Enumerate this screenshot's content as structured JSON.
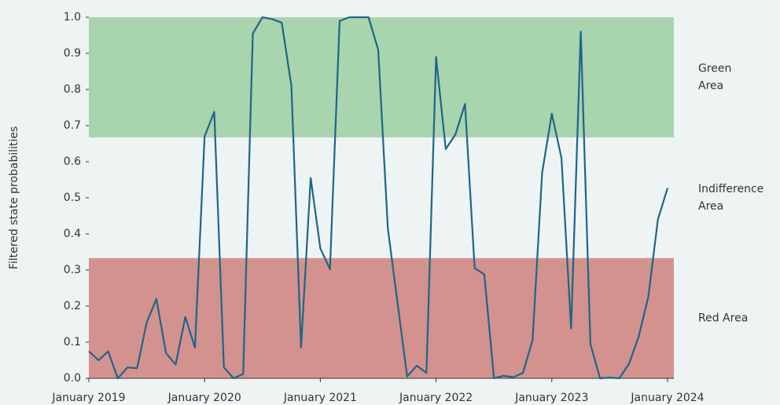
{
  "chart_data": {
    "type": "line",
    "y_label": "Filtered state probabilities",
    "x": [
      "2019-01",
      "2019-02",
      "2019-03",
      "2019-04",
      "2019-05",
      "2019-06",
      "2019-07",
      "2019-08",
      "2019-09",
      "2019-10",
      "2019-11",
      "2019-12",
      "2020-01",
      "2020-02",
      "2020-03",
      "2020-04",
      "2020-05",
      "2020-06",
      "2020-07",
      "2020-08",
      "2020-09",
      "2020-10",
      "2020-11",
      "2020-12",
      "2021-01",
      "2021-02",
      "2021-03",
      "2021-04",
      "2021-05",
      "2021-06",
      "2021-07",
      "2021-08",
      "2021-09",
      "2021-10",
      "2021-11",
      "2021-12",
      "2022-01",
      "2022-02",
      "2022-03",
      "2022-04",
      "2022-05",
      "2022-06",
      "2022-07",
      "2022-08",
      "2022-09",
      "2022-10",
      "2022-11",
      "2022-12",
      "2023-01",
      "2023-02",
      "2023-03",
      "2023-04",
      "2023-05",
      "2023-06",
      "2023-07",
      "2023-08",
      "2023-09",
      "2023-10",
      "2023-11",
      "2023-12",
      "2024-01"
    ],
    "series": [
      {
        "name": "Filtered state probabilities",
        "color": "#1c6688",
        "values": [
          0.075,
          0.05,
          0.075,
          0.0,
          0.03,
          0.028,
          0.155,
          0.22,
          0.07,
          0.038,
          0.17,
          0.085,
          0.67,
          0.738,
          0.03,
          0.0,
          0.012,
          0.955,
          1.0,
          0.995,
          0.985,
          0.81,
          0.085,
          0.555,
          0.36,
          0.302,
          0.99,
          1.0,
          1.0,
          1.0,
          0.91,
          0.415,
          0.21,
          0.005,
          0.035,
          0.015,
          0.89,
          0.635,
          0.675,
          0.76,
          0.305,
          0.288,
          0.0,
          0.007,
          0.003,
          0.015,
          0.105,
          0.57,
          0.733,
          0.61,
          0.138,
          0.96,
          0.095,
          0.0,
          0.002,
          0.0,
          0.04,
          0.115,
          0.225,
          0.44,
          0.527
        ]
      }
    ],
    "bands": [
      {
        "label": [
          "Green",
          "Area"
        ],
        "range": [
          0.667,
          1.0
        ],
        "color": "#a8d4ae"
      },
      {
        "label": [
          "Indifference",
          "Area"
        ],
        "range": [
          0.333,
          0.667
        ],
        "color": "#eef4f4"
      },
      {
        "label": [
          "Red Area"
        ],
        "range": [
          0.0,
          0.333
        ],
        "color": "#d4928e"
      }
    ],
    "xlim": [
      "2019-01",
      "2024-01"
    ],
    "xticks": [
      {
        "value": "2019-01",
        "label": "January 2019"
      },
      {
        "value": "2020-01",
        "label": "January 2020"
      },
      {
        "value": "2021-01",
        "label": "January 2021"
      },
      {
        "value": "2022-01",
        "label": "January 2022"
      },
      {
        "value": "2023-01",
        "label": "January 2023"
      },
      {
        "value": "2024-01",
        "label": "January 2024"
      }
    ],
    "ylim": [
      0,
      1
    ],
    "yticks": [
      {
        "value": 0,
        "label": "0.0"
      },
      0.1,
      0.2,
      0.3,
      0.4,
      0.5,
      0.6,
      0.7,
      0.8,
      0.9,
      {
        "value": 1,
        "label": "1.0"
      }
    ],
    "grid": false
  }
}
